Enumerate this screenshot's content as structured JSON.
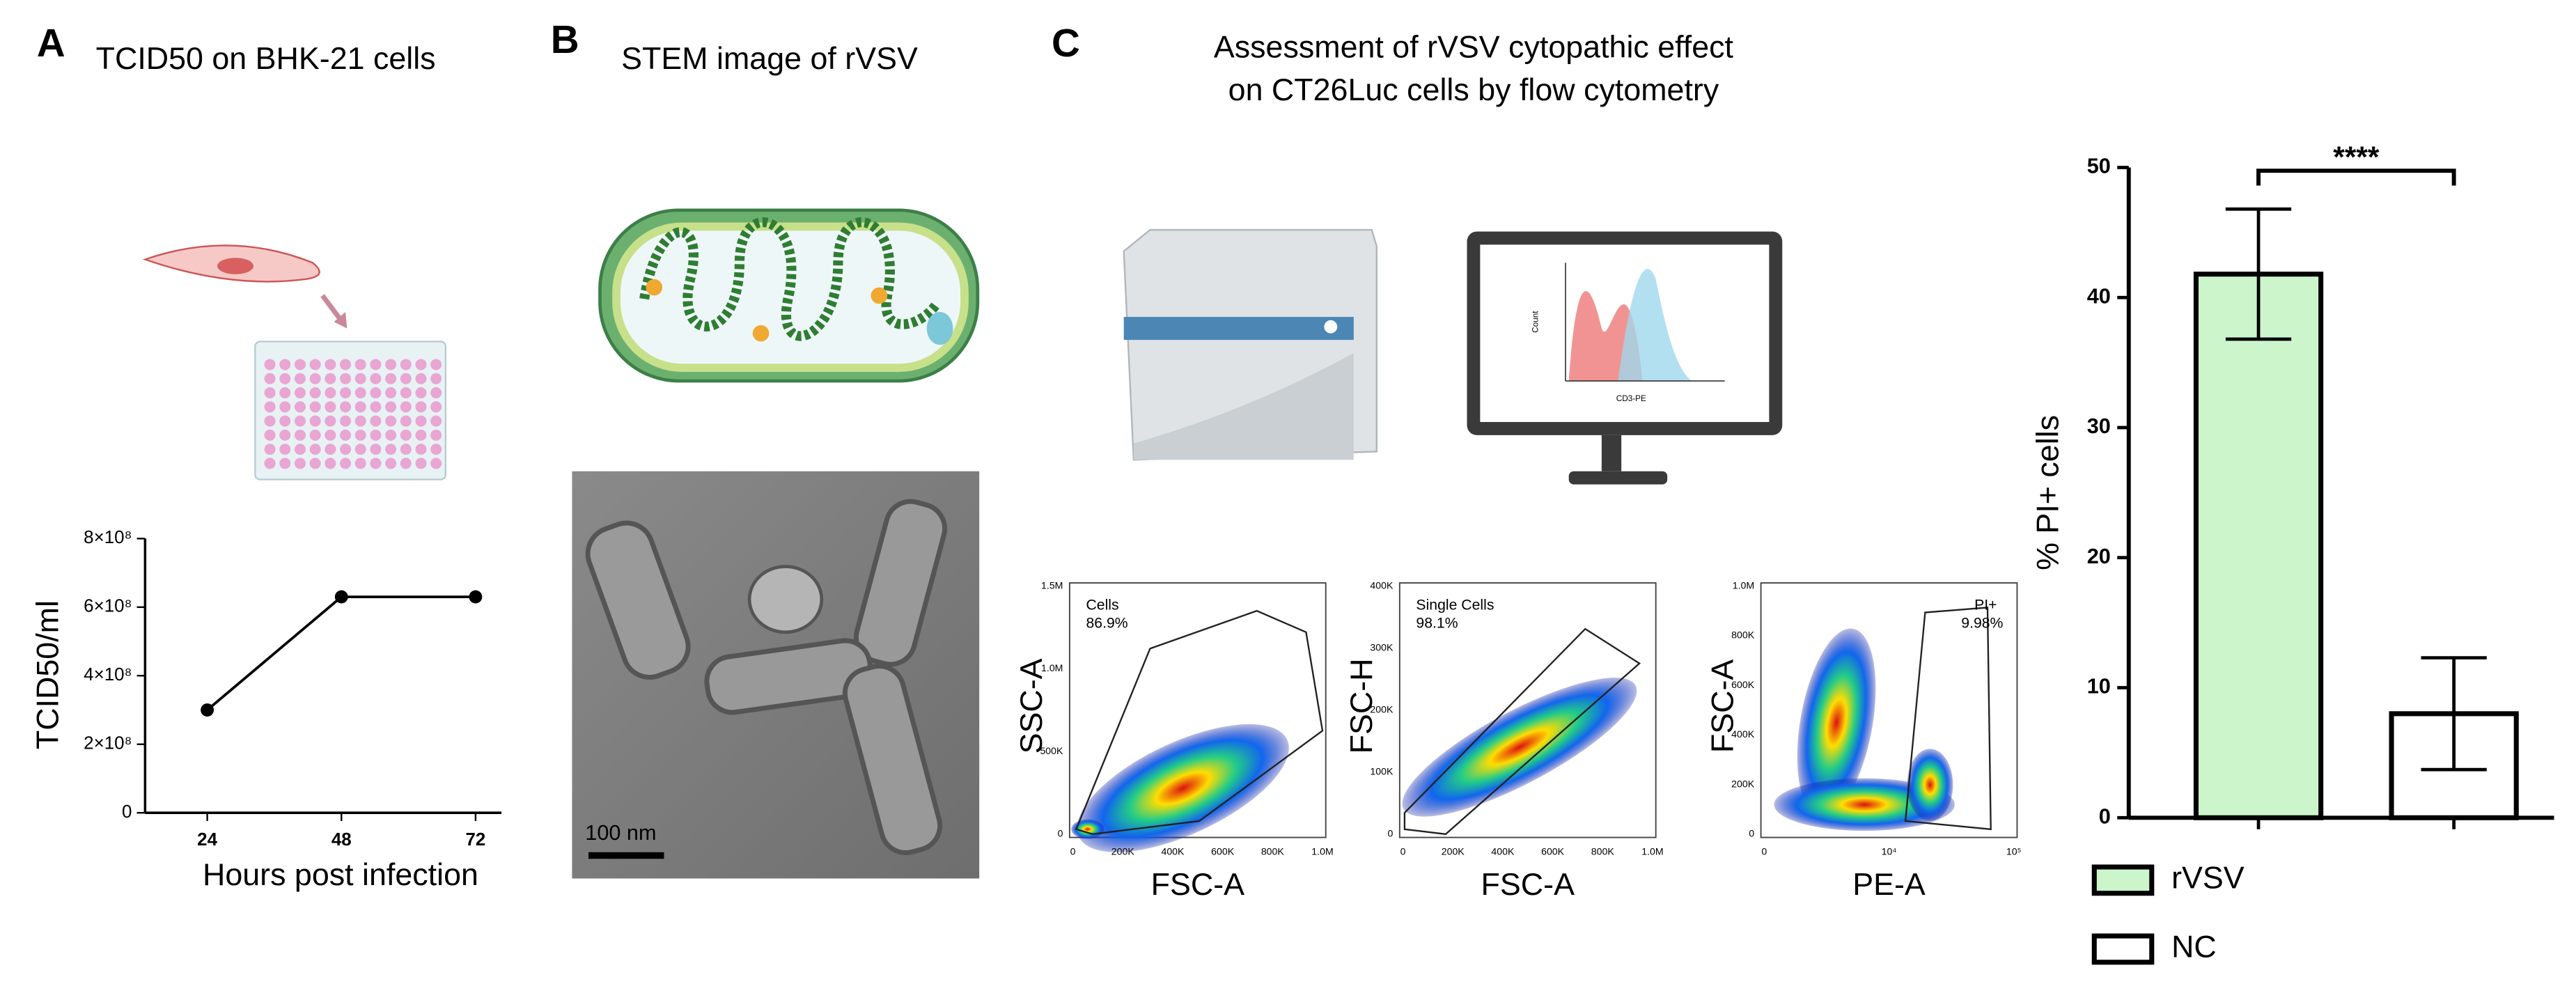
{
  "panels": {
    "A": {
      "letter": "A",
      "title": "TCID50 on BHK-21 cells"
    },
    "B": {
      "letter": "B",
      "title": "STEM image of rVSV",
      "scale_bar": "100 nm"
    },
    "C": {
      "letter": "C",
      "title_lines": [
        "Assessment of rVSV cytopathic effect",
        "on CT26Luc cells by flow cytometry"
      ],
      "monitor": {
        "y_label": "Count",
        "x_label": "CD3-PE"
      },
      "flow_plots": [
        {
          "y_label": "SSC-A",
          "x_label": "FSC-A",
          "gate": "Cells",
          "gate_value": "86.9%",
          "yticks": [
            "1.5M",
            "1.0M",
            "500K",
            "0"
          ],
          "xticks": [
            "0",
            "200K",
            "400K",
            "600K",
            "800K",
            "1.0M"
          ]
        },
        {
          "y_label": "FSC-H",
          "x_label": "FSC-A",
          "gate": "Single Cells",
          "gate_value": "98.1%",
          "yticks": [
            "400K",
            "300K",
            "200K",
            "100K",
            "0"
          ],
          "xticks": [
            "0",
            "200K",
            "400K",
            "600K",
            "800K",
            "1.0M"
          ]
        },
        {
          "y_label": "FSC-A",
          "x_label": "PE-A",
          "gate": "PI+",
          "gate_value": "9.98%",
          "yticks": [
            "1.0M",
            "800K",
            "600K",
            "400K",
            "200K",
            "0"
          ],
          "xticks": [
            "0",
            "10⁴",
            "10⁵"
          ]
        }
      ]
    }
  },
  "chart_data": [
    {
      "type": "line",
      "categories": [
        "24",
        "48",
        "72"
      ],
      "values": [
        300000000,
        630000000,
        630000000
      ],
      "color": "#000000",
      "x_label": "Hours post infection",
      "y_label": "TCID50/ml",
      "ylim": [
        0,
        800000000
      ],
      "yticks": [
        0,
        {
          "value": 200000000,
          "label": "2×10⁸"
        },
        {
          "value": 400000000,
          "label": "4×10⁸"
        },
        {
          "value": 600000000,
          "label": "6×10⁸"
        },
        {
          "value": 800000000,
          "label": "8×10⁸"
        }
      ],
      "grid": false
    },
    {
      "type": "bar",
      "y_label": "% PI+ cells",
      "ylim": [
        0,
        50
      ],
      "yticks": [
        0,
        10,
        20,
        30,
        40,
        50
      ],
      "grid": false,
      "series": [
        {
          "name": "rVSV",
          "color": "#ccf5cc",
          "values": [
            41.8
          ],
          "errors": [
            5.0
          ]
        },
        {
          "name": "NC",
          "color": "#ffffff",
          "values": [
            8.0
          ],
          "errors": [
            4.3
          ]
        }
      ],
      "annotation": "****",
      "legend": "bottom-left"
    }
  ]
}
